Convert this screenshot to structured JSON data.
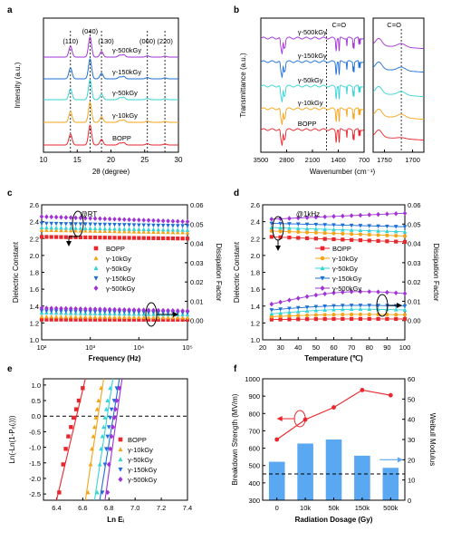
{
  "colors": {
    "bopp": "#e8262b",
    "g10": "#f5a418",
    "g50": "#35d4d6",
    "g150": "#1e6fd6",
    "g500": "#a032d6",
    "bar": "#5aa7f2",
    "curve": "#e8262b",
    "axis": "#000000"
  },
  "chart_data": [
    {
      "id": "a",
      "panel_label": "a",
      "type": "line",
      "xlabel": "2θ (degree)",
      "ylabel": "Intensity (a.u.)",
      "xlim": [
        10,
        30
      ],
      "xticks": [
        "10",
        "15",
        "20",
        "25",
        "30"
      ],
      "peak_labels": [
        {
          "text": "(110)",
          "x": 14.0
        },
        {
          "text": "(040)",
          "x": 16.9
        },
        {
          "text": "(130)",
          "x": 18.6
        },
        {
          "text": "(060)",
          "x": 25.4
        },
        {
          "text": "(220)",
          "x": 28.0
        }
      ],
      "dashed_at": [
        14.0,
        16.9,
        18.6,
        25.4,
        28.0
      ],
      "peaks": [
        {
          "x": 14.0,
          "h": 0.55
        },
        {
          "x": 16.9,
          "h": 1.0
        },
        {
          "x": 18.6,
          "h": 0.28
        },
        {
          "x": 21.3,
          "h": 0.1
        },
        {
          "x": 21.9,
          "h": 0.12
        },
        {
          "x": 25.4,
          "h": 0.07
        },
        {
          "x": 28.0,
          "h": 0.05
        }
      ],
      "series": [
        {
          "name": "BOPP",
          "color_key": "bopp"
        },
        {
          "name": "γ-10kGy",
          "color_key": "g10"
        },
        {
          "name": "γ-50kGy",
          "color_key": "g50"
        },
        {
          "name": "γ-150kGy",
          "color_key": "g150"
        },
        {
          "name": "γ-500kGy",
          "color_key": "g500"
        }
      ]
    },
    {
      "id": "b",
      "panel_label": "b",
      "type": "line",
      "xlabel": "Wavenumber (cm⁻¹)",
      "ylabel": "Transmittance (a.u.)",
      "left_xticks": [
        "3500",
        "2800",
        "2100",
        "1400",
        "700"
      ],
      "left_xlim": [
        3500,
        700
      ],
      "right_xticks": [
        "1750",
        "1700"
      ],
      "right_xlim": [
        1770,
        1680
      ],
      "annotation": "C=O",
      "annotation_x": 1720,
      "left_labels": [
        "BOPP",
        "γ-10kGy",
        "γ-50kGy",
        "γ-150kGy",
        "γ-500kGy"
      ],
      "series": [
        {
          "name": "BOPP",
          "color_key": "bopp"
        },
        {
          "name": "γ-10kGy",
          "color_key": "g10"
        },
        {
          "name": "γ-50kGy",
          "color_key": "g50"
        },
        {
          "name": "γ-150kGy",
          "color_key": "g150"
        },
        {
          "name": "γ-500kGy",
          "color_key": "g500"
        }
      ]
    },
    {
      "id": "c",
      "panel_label": "c",
      "type": "scatter",
      "annotation": "@RT",
      "xlabel": "Frequency (Hz)",
      "ylabel": "Dielectric Constant",
      "y2label": "Dissipation Factor",
      "x_log": true,
      "xlim": [
        100,
        100000
      ],
      "xticks": [
        "10²",
        "10³",
        "10⁴",
        "10⁵"
      ],
      "ylim": [
        1.0,
        2.6
      ],
      "yticks": [
        "1.0",
        "1.2",
        "1.4",
        "1.6",
        "1.8",
        "2.0",
        "2.2",
        "2.4",
        "2.6"
      ],
      "y2lim": [
        -0.01,
        0.06
      ],
      "y2ticks": [
        "0.00",
        "0.01",
        "0.02",
        "0.03",
        "0.04",
        "0.05",
        "0.06"
      ],
      "legend": [
        "BOPP",
        "γ-10kGy",
        "γ-50kGy",
        "γ-150kGy",
        "γ-500kGy"
      ],
      "series": [
        {
          "name": "BOPP",
          "color_key": "bopp",
          "marker": "square",
          "dk": [
            2.22,
            2.2
          ],
          "df": [
            0.0005,
            0.0004
          ]
        },
        {
          "name": "γ-10kGy",
          "color_key": "g10",
          "marker": "triangle-up",
          "dk": [
            2.3,
            2.27
          ],
          "df": [
            0.002,
            0.0015
          ]
        },
        {
          "name": "γ-50kGy",
          "color_key": "g50",
          "marker": "triangle-up",
          "dk": [
            2.33,
            2.3
          ],
          "df": [
            0.004,
            0.003
          ]
        },
        {
          "name": "γ-150kGy",
          "color_key": "g150",
          "marker": "triangle-down",
          "dk": [
            2.38,
            2.35
          ],
          "df": [
            0.005,
            0.004
          ]
        },
        {
          "name": "γ-500kGy",
          "color_key": "g500",
          "marker": "diamond",
          "dk": [
            2.46,
            2.4
          ],
          "df": [
            0.0065,
            0.005
          ]
        }
      ]
    },
    {
      "id": "d",
      "panel_label": "d",
      "type": "line",
      "annotation": "@1kHz",
      "xlabel": "Temperature (℃)",
      "ylabel": "Dielectric Constant",
      "y2label": "Dissipation Factor",
      "xlim": [
        20,
        100
      ],
      "xticks": [
        "20",
        "30",
        "40",
        "50",
        "60",
        "70",
        "80",
        "90",
        "100"
      ],
      "ylim": [
        1.0,
        2.6
      ],
      "yticks": [
        "1.0",
        "1.2",
        "1.4",
        "1.6",
        "1.8",
        "2.0",
        "2.2",
        "2.4",
        "2.6"
      ],
      "y2lim": [
        -0.01,
        0.06
      ],
      "y2ticks": [
        "0.00",
        "0.01",
        "0.02",
        "0.03",
        "0.04",
        "0.05",
        "0.06"
      ],
      "legend": [
        "BOPP",
        "γ-10kGy",
        "γ-50kGy",
        "γ-150kGy",
        "γ-500kGy"
      ],
      "series": [
        {
          "name": "BOPP",
          "color_key": "bopp",
          "marker": "square",
          "dk": [
            2.22,
            2.16
          ],
          "df": [
            0.0005,
            0.0008
          ]
        },
        {
          "name": "γ-10kGy",
          "color_key": "g10",
          "marker": "circle",
          "dk": [
            2.29,
            2.23
          ],
          "df": [
            0.002,
            0.003
          ]
        },
        {
          "name": "γ-50kGy",
          "color_key": "g50",
          "marker": "triangle-up",
          "dk": [
            2.33,
            2.28
          ],
          "df": [
            0.0035,
            0.0055
          ]
        },
        {
          "name": "γ-150kGy",
          "color_key": "g150",
          "marker": "triangle-down",
          "dk": [
            2.38,
            2.34
          ],
          "df": [
            0.0055,
            0.0075
          ]
        },
        {
          "name": "γ-500kGy",
          "color_key": "g500",
          "marker": "diamond",
          "dk": [
            2.43,
            2.5
          ],
          "df": [
            0.0085,
            0.014
          ]
        }
      ]
    },
    {
      "id": "e",
      "panel_label": "e",
      "type": "scatter",
      "xlabel": "Ln Eᵢ",
      "ylabel": "Ln(-Ln(1-Pₑ(ᵢ)))",
      "xlim": [
        6.3,
        7.4
      ],
      "xticks": [
        "6.4",
        "6.6",
        "6.8",
        "7.0",
        "7.2",
        "7.4"
      ],
      "ylim": [
        -2.7,
        1.2
      ],
      "yticks": [
        "-2.5",
        "-2.0",
        "-1.5",
        "-1.0",
        "-0.5",
        "0.0",
        "0.5",
        "1.0"
      ],
      "reference_y": 0,
      "legend": [
        "BOPP",
        "γ-10kGy",
        "γ-50kGy",
        "γ-150kGy",
        "γ-500kGy"
      ],
      "series": [
        {
          "name": "BOPP",
          "color_key": "bopp",
          "marker": "square",
          "fit": [
            [
              6.4,
              -2.7
            ],
            [
              6.62,
              1.2
            ]
          ],
          "x": [
            6.42,
            6.45,
            6.47,
            6.49,
            6.51,
            6.53,
            6.55,
            6.57,
            6.6
          ],
          "y": [
            -2.45,
            -1.55,
            -1.05,
            -0.65,
            -0.35,
            -0.05,
            0.22,
            0.5,
            0.9
          ]
        },
        {
          "name": "γ-10kGy",
          "color_key": "g10",
          "marker": "triangle-up",
          "fit": [
            [
              6.62,
              -2.7
            ],
            [
              6.76,
              1.2
            ]
          ],
          "x": [
            6.64,
            6.66,
            6.67,
            6.68,
            6.69,
            6.7,
            6.71,
            6.72,
            6.74
          ],
          "y": [
            -2.45,
            -1.55,
            -1.05,
            -0.65,
            -0.35,
            -0.05,
            0.22,
            0.5,
            0.9
          ]
        },
        {
          "name": "γ-50kGy",
          "color_key": "g50",
          "marker": "triangle-up",
          "fit": [
            [
              6.69,
              -2.7
            ],
            [
              6.83,
              1.2
            ]
          ],
          "x": [
            6.71,
            6.73,
            6.74,
            6.75,
            6.76,
            6.77,
            6.78,
            6.79,
            6.81
          ],
          "y": [
            -2.45,
            -1.55,
            -1.05,
            -0.65,
            -0.35,
            -0.05,
            0.22,
            0.5,
            0.9
          ]
        },
        {
          "name": "γ-150kGy",
          "color_key": "g150",
          "marker": "triangle-down",
          "fit": [
            [
              6.73,
              -2.7
            ],
            [
              6.88,
              1.2
            ]
          ],
          "x": [
            6.75,
            6.77,
            6.78,
            6.79,
            6.8,
            6.81,
            6.82,
            6.84,
            6.86
          ],
          "y": [
            -2.45,
            -1.55,
            -1.05,
            -0.65,
            -0.35,
            -0.05,
            0.22,
            0.5,
            0.9
          ]
        },
        {
          "name": "γ-500kGy",
          "color_key": "g500",
          "marker": "diamond",
          "fit": [
            [
              6.77,
              -2.7
            ],
            [
              6.9,
              1.2
            ]
          ],
          "x": [
            6.79,
            6.8,
            6.81,
            6.82,
            6.83,
            6.84,
            6.85,
            6.86,
            6.88
          ],
          "y": [
            -2.45,
            -1.55,
            -1.05,
            -0.65,
            -0.35,
            -0.05,
            0.22,
            0.5,
            0.9
          ]
        }
      ]
    },
    {
      "id": "f",
      "panel_label": "f",
      "type": "bar",
      "xlabel": "Radiation Dosage (Gy)",
      "ylabel": "Breakdown Strength (MV/m)",
      "y2label": "Weibull Modulus",
      "categories": [
        "0",
        "10k",
        "50k",
        "150k",
        "500k"
      ],
      "ylim": [
        300,
        1000
      ],
      "yticks": [
        "300",
        "400",
        "500",
        "600",
        "700",
        "800",
        "900",
        "1000"
      ],
      "y2lim": [
        0,
        60
      ],
      "y2ticks": [
        "0",
        "10",
        "20",
        "30",
        "40",
        "50",
        "60"
      ],
      "breakdown_strength": [
        650,
        765,
        835,
        935,
        905
      ],
      "weibull_modulus": [
        19,
        28,
        30,
        22,
        16
      ],
      "reference_y2": 13
    }
  ]
}
